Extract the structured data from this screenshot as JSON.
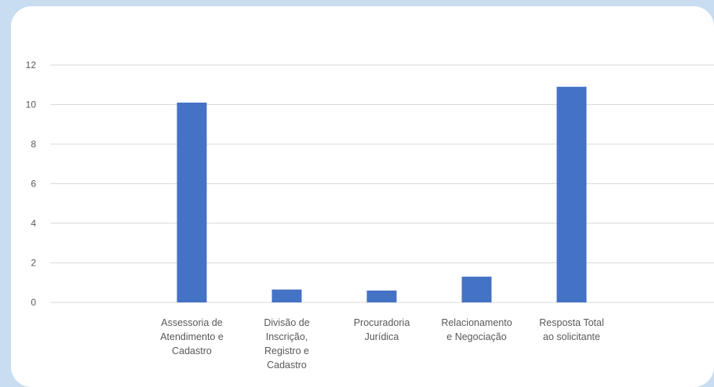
{
  "chart_data": {
    "type": "bar",
    "title": "",
    "xlabel": "",
    "ylabel": "",
    "ylim": [
      0,
      12
    ],
    "yticks": [
      0,
      2,
      4,
      6,
      8,
      10,
      12
    ],
    "grid": true,
    "bar_color": "#4472c4",
    "categories": [
      [
        "Assessoria de",
        "Atendimento e",
        "Cadastro"
      ],
      [
        "Divisão de",
        "Inscrição,",
        "Registro e",
        "Cadastro"
      ],
      [
        "Procuradoria",
        "Jurídica"
      ],
      [
        "Relacionamento",
        "e Negociação"
      ],
      [
        "Resposta Total",
        "ao solicitante"
      ]
    ],
    "values": [
      10.1,
      0.65,
      0.6,
      1.3,
      10.9
    ]
  }
}
